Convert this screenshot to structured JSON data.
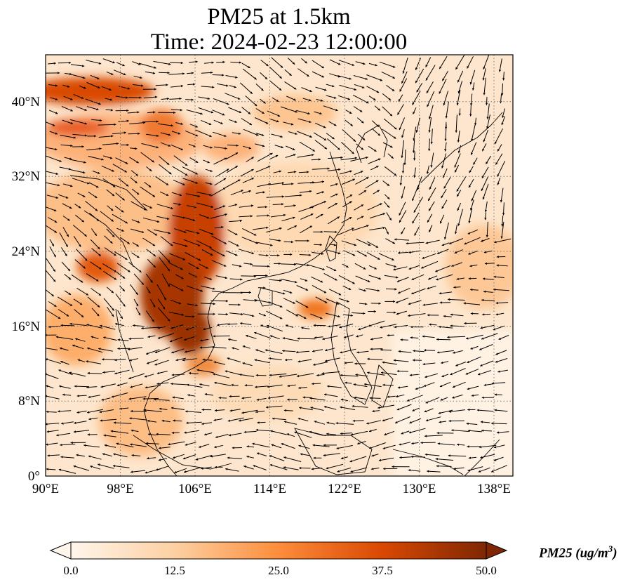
{
  "title": {
    "line1": "PM25 at 1.5km",
    "line2": "Time: 2024-02-23 12:00:00"
  },
  "map": {
    "lon_range": [
      90,
      140
    ],
    "lat_range": [
      0,
      45
    ],
    "x_ticks": [
      "90°E",
      "98°E",
      "106°E",
      "114°E",
      "122°E",
      "130°E",
      "138°E"
    ],
    "y_ticks": [
      "0°",
      "8°N",
      "16°N",
      "24°N",
      "32°N",
      "40°N"
    ],
    "gridlines": "dotted",
    "wind_vectors": "black arrows"
  },
  "colorbar": {
    "tick_labels": [
      "0.0",
      "12.5",
      "25.0",
      "37.5",
      "50.0"
    ],
    "label_main": "PM25 (ug/m",
    "label_sup": "3",
    "label_end": ")",
    "colormap": [
      "#fff5eb",
      "#fdd0a2",
      "#fd8d3c",
      "#d94801",
      "#7f2704"
    ],
    "extend": "both"
  }
}
